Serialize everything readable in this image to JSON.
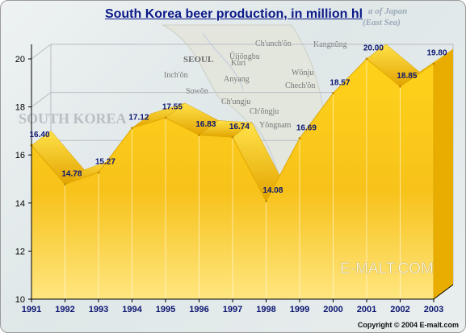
{
  "title": "South Korea beer production, in million hl",
  "watermark": "E-MALT.COM",
  "copyright": "Copyright © 2004  E-malt.com",
  "map_labels": [
    {
      "text": "a of Japan",
      "cls": "sea"
    },
    {
      "text": "(East Sea)",
      "cls": "sea"
    },
    {
      "text": "Ch'unch'ŏn",
      "cls": "city"
    },
    {
      "text": "Kangnŭng",
      "cls": "city"
    },
    {
      "text": "Ŭijŏngbu",
      "cls": "city"
    },
    {
      "text": "SEOUL",
      "cls": "capital"
    },
    {
      "text": "Kuri",
      "cls": "city"
    },
    {
      "text": "Inch'ŏn",
      "cls": "city"
    },
    {
      "text": "Anyang",
      "cls": "city"
    },
    {
      "text": "Wŏnju",
      "cls": "city"
    },
    {
      "text": "Suwŏn",
      "cls": "city"
    },
    {
      "text": "Chech'ŏn",
      "cls": "city"
    },
    {
      "text": "Ch'ungju",
      "cls": "city"
    },
    {
      "text": "Ch'ŏngju",
      "cls": "city"
    },
    {
      "text": "SOUTH KOREA",
      "cls": "country"
    },
    {
      "text": "Yŏngnam",
      "cls": "city"
    }
  ],
  "chart_data": {
    "type": "area",
    "title": "South Korea beer production, in million hl",
    "x": [
      1991,
      1992,
      1993,
      1994,
      1995,
      1996,
      1997,
      1998,
      1999,
      2000,
      2001,
      2002,
      2003
    ],
    "values": [
      16.4,
      14.78,
      15.27,
      17.12,
      17.55,
      16.83,
      16.74,
      14.08,
      16.69,
      18.57,
      20.0,
      18.85,
      19.8
    ],
    "value_labels": [
      "16.40",
      "14.78",
      "15.27",
      "17.12",
      "17.55",
      "16.83",
      "16.74",
      "14.08",
      "16.69",
      "18.57",
      "20.00",
      "18.85",
      "19.80"
    ],
    "xlabel": "",
    "ylabel": "",
    "ylim": [
      10,
      20
    ],
    "yticks": [
      10,
      12,
      14,
      16,
      18,
      20
    ],
    "grid": true,
    "fill_color": "#f2b80c",
    "fill_color_light": "#ffe060",
    "fill_color_dark": "#d99a00",
    "label_color": "#0a1570"
  }
}
